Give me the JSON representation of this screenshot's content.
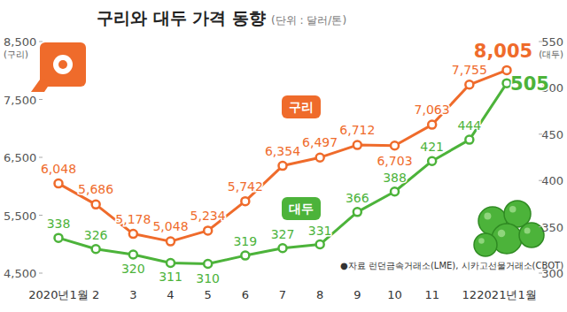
{
  "chart_data": {
    "type": "line",
    "title": "구리와 대두 가격 동향",
    "subtitle": "(단위 : 달러/톤)",
    "y_label": "(구리)",
    "y2_label": "(대두)",
    "source": "●자료 런던금속거래소(LME), 시카고선물거래소(CBOT)",
    "categories": [
      "2020년1월",
      "2",
      "3",
      "4",
      "5",
      "6",
      "7",
      "8",
      "9",
      "10",
      "11",
      "12",
      "2021년1월"
    ],
    "ylim": [
      4500,
      8500
    ],
    "yticks": [
      {
        "value": 4500,
        "label": "4,500"
      },
      {
        "value": 5500,
        "label": "5,500"
      },
      {
        "value": 6500,
        "label": "6,500"
      },
      {
        "value": 7500,
        "label": "7,500"
      },
      {
        "value": 8500,
        "label": "8,500"
      }
    ],
    "y2lim": [
      300,
      550
    ],
    "y2ticks": [
      300,
      350,
      400,
      450,
      500,
      550
    ],
    "grid": false,
    "data_labels": true,
    "series": [
      {
        "name": "구리",
        "color": "#ef6b2b",
        "marker": "circle",
        "line_style": "solid",
        "values": [
          6048,
          5686,
          5178,
          5048,
          5234,
          5742,
          6354,
          6497,
          6712,
          6703,
          7063,
          7755,
          8005
        ],
        "value_labels": [
          "6,048",
          "5,686",
          "5,178",
          "5,048",
          "5,234",
          "5,742",
          "6,354",
          "6,497",
          "6,712",
          "6,703",
          "7,063",
          "7,755",
          "8,005"
        ]
      },
      {
        "name": "대두",
        "color": "#4cb33a",
        "marker": "circle",
        "line_style": "solid",
        "axis": "y2",
        "values": [
          338,
          326,
          320,
          311,
          310,
          319,
          327,
          331,
          366,
          388,
          421,
          444,
          505
        ]
      }
    ]
  }
}
